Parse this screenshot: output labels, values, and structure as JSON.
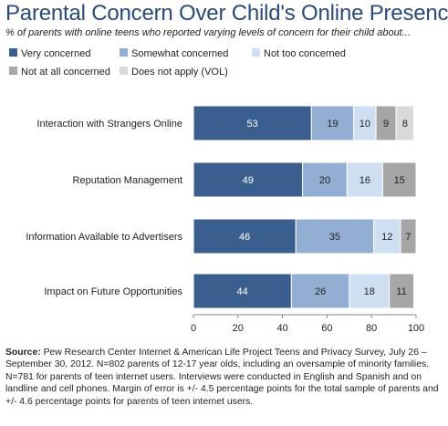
{
  "title": "Parental Concern Over Child's Online Presence",
  "subtitle": "% of parents with online teens who reported varying levels of concern for their child about...",
  "source_label": "Source:",
  "source_text": "Pew Research Center Internet & American Life Project Teens and Privacy Survey, July 26 – September 30, 2012. N=802 parents of 12-17 year olds, including an oversample of minority families. N=781 for parents of teen internet users.  Interviews were conducted in English and Spanish and on landline and cell phones.  Margin of error is +/- 4.5 percentage points for the total sample of parents and +/- 4.6 percentage points for parents of teen internet users.",
  "colors": {
    "Very concerned": "#3a5f8f",
    "Somewhat concerned": "#92afd3",
    "Not too concerned": "#cfdff2",
    "Not at all concerned": "#a6a6a6",
    "Does not apply (VOL)": "#d9d9d9"
  },
  "chart_data": {
    "type": "bar",
    "orientation": "horizontal",
    "stacked": true,
    "categories": [
      "Interaction with Strangers Online",
      "Reputation Management",
      "Information Available to Advertisers",
      "Impact on Future Opportunities"
    ],
    "series": [
      {
        "name": "Very concerned",
        "values": [
          53,
          49,
          46,
          44
        ]
      },
      {
        "name": "Somewhat concerned",
        "values": [
          19,
          20,
          35,
          26
        ]
      },
      {
        "name": "Not too concerned",
        "values": [
          10,
          16,
          12,
          18
        ]
      },
      {
        "name": "Not at all concerned",
        "values": [
          9,
          15,
          7,
          11
        ]
      },
      {
        "name": "Does not apply (VOL)",
        "values": [
          8,
          null,
          null,
          null
        ]
      }
    ],
    "xlim": [
      0,
      100
    ],
    "xticks": [
      0,
      20,
      40,
      60,
      80,
      100
    ],
    "grid": false,
    "legend_position": "top"
  }
}
